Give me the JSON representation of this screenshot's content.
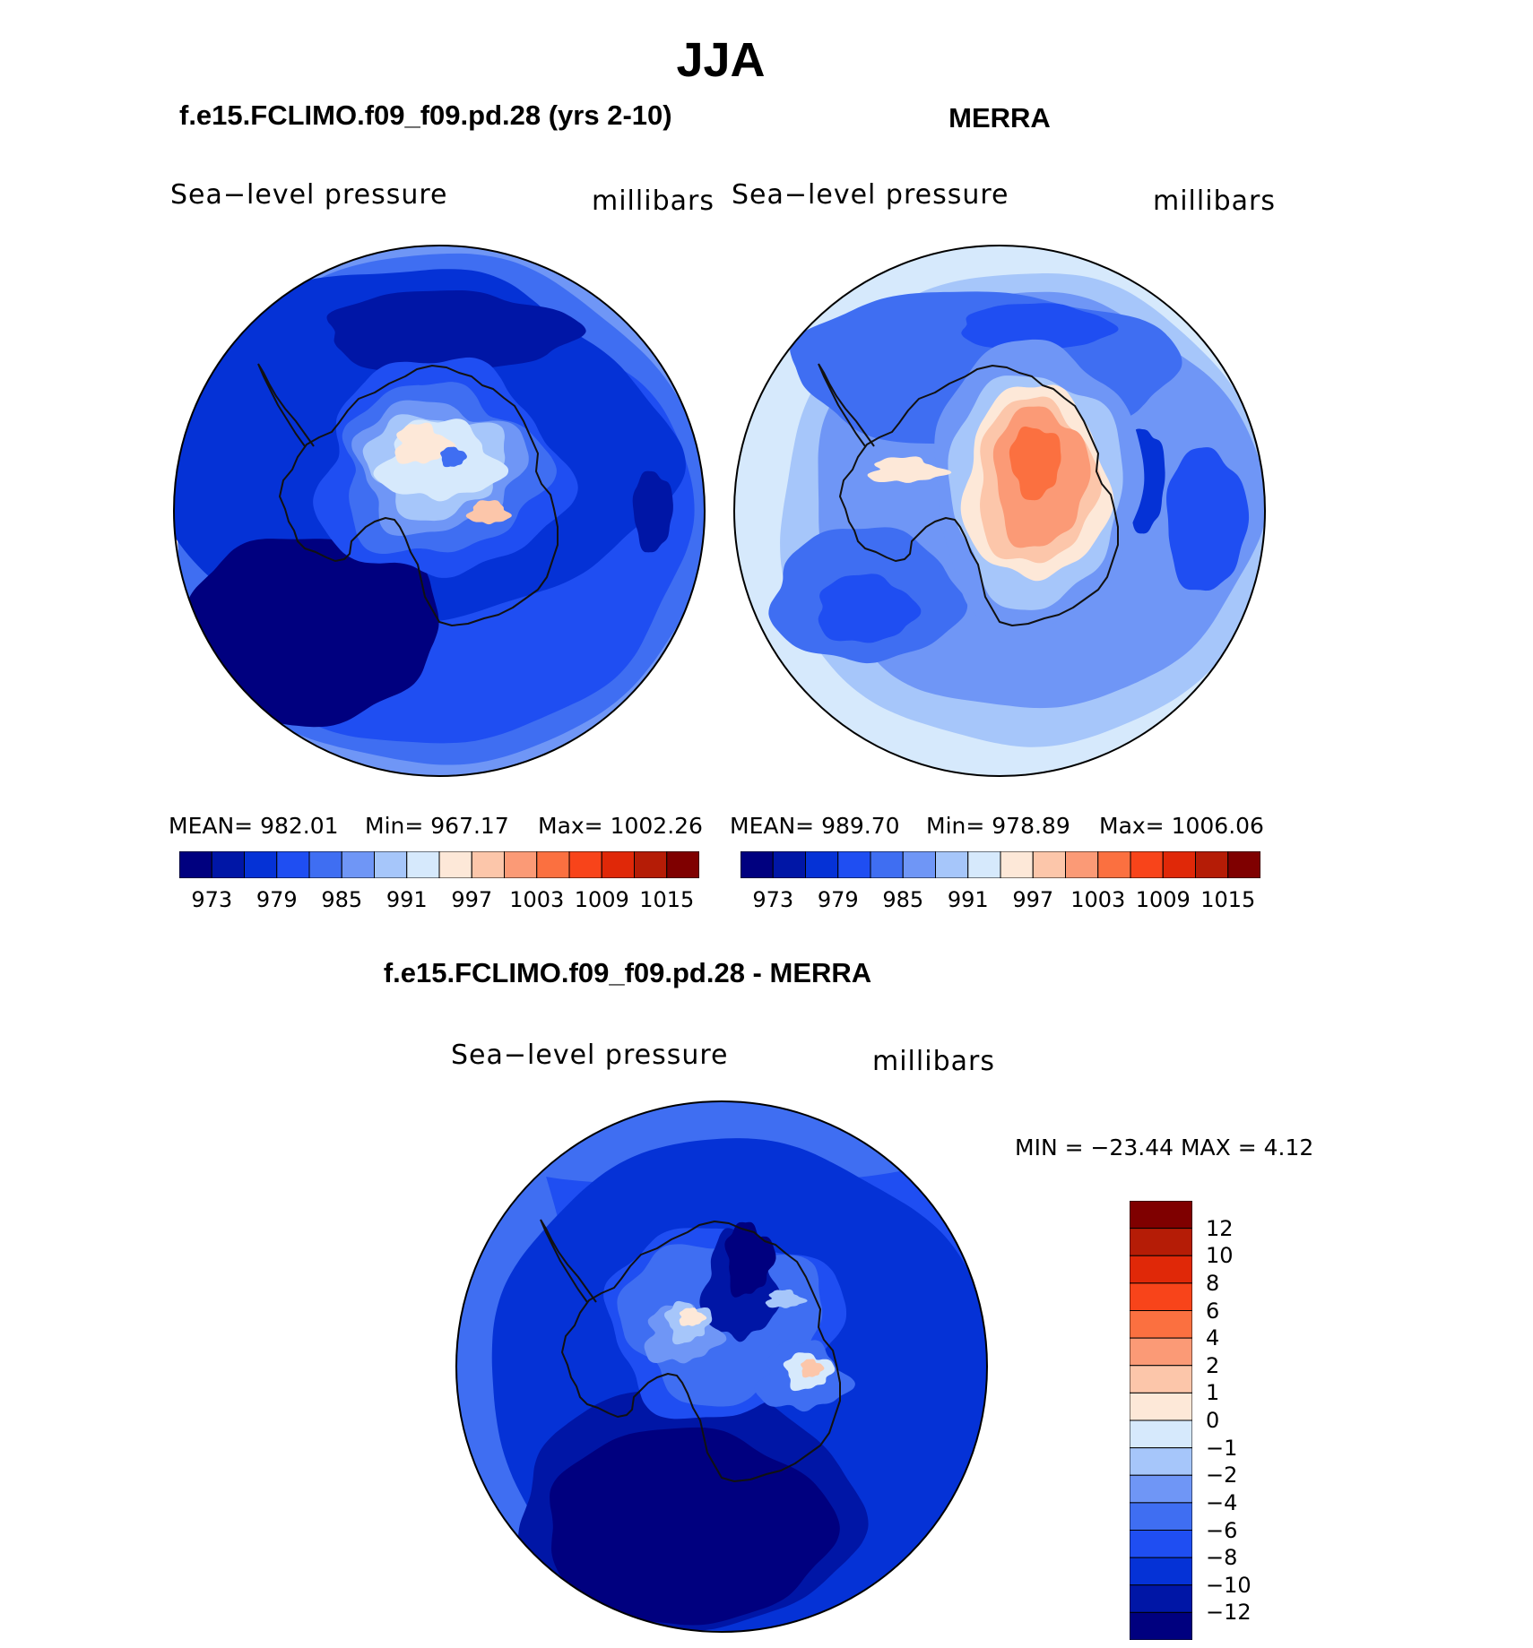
{
  "title": "JJA",
  "panels": {
    "left": {
      "title": "f.e15.FCLIMO.f09_f09.pd.28 (yrs 2-10)",
      "variable": "Sea−level  pressure",
      "units": "millibars",
      "mean": "MEAN=  982.01",
      "min": "Min=  967.17",
      "max": "Max=  1002.26"
    },
    "right": {
      "title": "MERRA",
      "variable": "Sea−level  pressure",
      "units": "millibars",
      "mean": "MEAN=  989.70",
      "min": "Min=  978.89",
      "max": "Max=  1006.06"
    },
    "diff": {
      "title": "f.e15.FCLIMO.f09_f09.pd.28 - MERRA",
      "variable": "Sea−level  pressure",
      "units": "millibars",
      "minmax": "MIN  =  −23.44  MAX  =      4.12"
    }
  },
  "colors": {
    "levels": [
      "#00007f",
      "#0016a6",
      "#0532d6",
      "#1f4ef2",
      "#3f6ef2",
      "#6f96f6",
      "#a6c6fa",
      "#d6e9fc",
      "#fde8d8",
      "#fcc6aa",
      "#fb9a76",
      "#fb7040",
      "#f8441a",
      "#e02808",
      "#b51c06",
      "#7f0000"
    ],
    "coast": "#111111"
  },
  "colorbars": {
    "abs_ticks": [
      "973",
      "979",
      "985",
      "991",
      "997",
      "1003",
      "1009",
      "1015"
    ],
    "diff_ticks": [
      "12",
      "10",
      "8",
      "6",
      "4",
      "2",
      "1",
      "0",
      "−1",
      "−2",
      "−4",
      "−6",
      "−8",
      "−10",
      "−12"
    ]
  },
  "chart_data": [
    {
      "type": "heatmap",
      "projection": "south polar stereographic",
      "title": "f.e15.FCLIMO.f09_f09.pd.28 (yrs 2-10)",
      "variable": "Sea-level pressure",
      "units": "millibars",
      "contour_levels": [
        970,
        973,
        976,
        979,
        982,
        985,
        988,
        991,
        994,
        997,
        1000,
        1003,
        1006,
        1009,
        1012,
        1015
      ],
      "mean": 982.01,
      "min": 967.17,
      "max": 1002.26
    },
    {
      "type": "heatmap",
      "projection": "south polar stereographic",
      "title": "MERRA",
      "variable": "Sea-level pressure",
      "units": "millibars",
      "contour_levels": [
        970,
        973,
        976,
        979,
        982,
        985,
        988,
        991,
        994,
        997,
        1000,
        1003,
        1006,
        1009,
        1012,
        1015
      ],
      "mean": 989.7,
      "min": 978.89,
      "max": 1006.06
    },
    {
      "type": "heatmap",
      "projection": "south polar stereographic",
      "title": "f.e15.FCLIMO.f09_f09.pd.28 - MERRA",
      "variable": "Sea-level pressure",
      "units": "millibars",
      "contour_levels": [
        -12,
        -10,
        -8,
        -6,
        -4,
        -2,
        -1,
        0,
        1,
        2,
        4,
        6,
        8,
        10,
        12
      ],
      "min": -23.44,
      "max": 4.12
    }
  ]
}
